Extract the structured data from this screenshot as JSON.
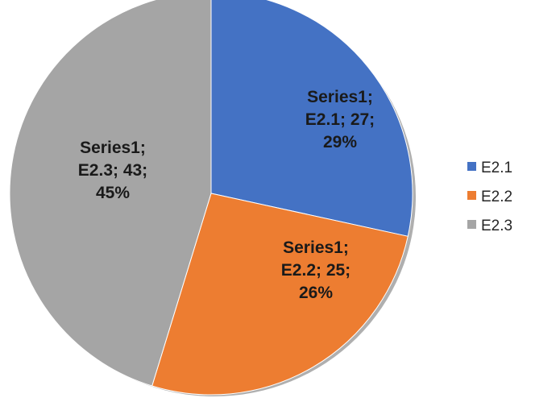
{
  "chart_data": {
    "type": "pie",
    "series": [
      {
        "name": "Series1",
        "categories": [
          "E2.1",
          "E2.2",
          "E2.3"
        ],
        "values": [
          27,
          25,
          43
        ],
        "percentages": [
          "29%",
          "26%",
          "45%"
        ],
        "colors": [
          "#4472c4",
          "#ed7d31",
          "#a5a5a5"
        ]
      }
    ],
    "data_labels": [
      [
        "Series1;",
        "E2.1; 27;",
        "29%"
      ],
      [
        "Series1;",
        "E2.2; 25;",
        "26%"
      ],
      [
        "Series1;",
        "E2.3; 43;",
        "45%"
      ]
    ],
    "legend": {
      "position": "right",
      "entries": [
        "E2.1",
        "E2.2",
        "E2.3"
      ]
    }
  }
}
